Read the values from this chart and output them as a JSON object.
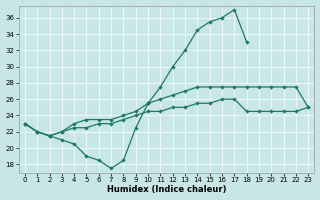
{
  "xlabel": "Humidex (Indice chaleur)",
  "background_color": "#c8e6e6",
  "grid_color": "#b0d0d0",
  "line_color": "#1a7a6a",
  "xlim": [
    -0.5,
    23.5
  ],
  "ylim": [
    17.0,
    37.5
  ],
  "yticks": [
    18,
    20,
    22,
    24,
    26,
    28,
    30,
    32,
    34,
    36
  ],
  "xticks": [
    0,
    1,
    2,
    3,
    4,
    5,
    6,
    7,
    8,
    9,
    10,
    11,
    12,
    13,
    14,
    15,
    16,
    17,
    18,
    19,
    20,
    21,
    22,
    23
  ],
  "series1_x": [
    0,
    1,
    2,
    3,
    4,
    5,
    6,
    7,
    8,
    9,
    10,
    11,
    12,
    13,
    14,
    15,
    16,
    17,
    18
  ],
  "series1_y": [
    23.0,
    22.0,
    21.5,
    21.0,
    20.5,
    19.0,
    18.5,
    17.5,
    18.5,
    22.5,
    25.5,
    27.5,
    30.0,
    32.0,
    34.5,
    35.5,
    36.0,
    37.0,
    33.0
  ],
  "series2_x": [
    0,
    1,
    2,
    3,
    4,
    5,
    6,
    7,
    8,
    9,
    10,
    11,
    12,
    13,
    14,
    15,
    16,
    17,
    18,
    19,
    20,
    21,
    22,
    23
  ],
  "series2_y": [
    23.0,
    22.0,
    21.5,
    22.0,
    23.0,
    23.5,
    23.5,
    23.5,
    24.0,
    24.5,
    25.5,
    26.0,
    26.5,
    27.0,
    27.5,
    27.5,
    27.5,
    27.5,
    27.5,
    27.5,
    27.5,
    27.5,
    27.5,
    25.0
  ],
  "series3_x": [
    0,
    1,
    2,
    3,
    4,
    5,
    6,
    7,
    8,
    9,
    10,
    11,
    12,
    13,
    14,
    15,
    16,
    17,
    18,
    19,
    20,
    21,
    22,
    23
  ],
  "series3_y": [
    23.0,
    22.0,
    21.5,
    22.0,
    22.5,
    22.5,
    23.0,
    23.0,
    23.5,
    24.0,
    24.5,
    24.5,
    25.0,
    25.0,
    25.5,
    25.5,
    26.0,
    26.0,
    24.5,
    24.5,
    24.5,
    24.5,
    24.5,
    25.0
  ]
}
